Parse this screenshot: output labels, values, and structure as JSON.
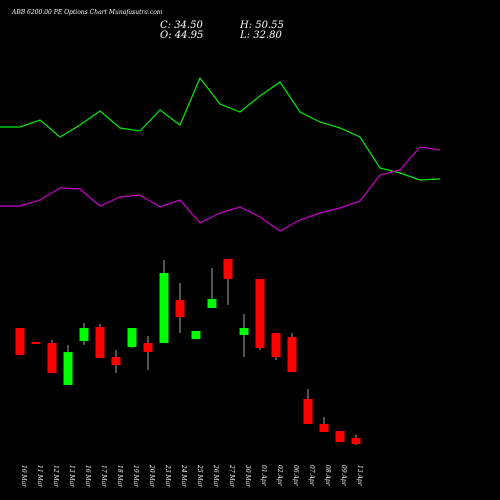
{
  "chart_data": [
    {
      "type": "line",
      "ylim": [
        0,
        250
      ],
      "series": [
        {
          "name": "upper",
          "color": "#00ee00",
          "values": [
            123,
            123,
            130,
            113,
            125,
            139,
            122,
            119,
            140,
            125,
            172,
            146,
            138,
            154,
            168,
            138,
            128,
            122,
            113,
            82,
            77,
            70,
            71
          ]
        },
        {
          "name": "lower",
          "color": "#cc00cc",
          "values": [
            44,
            44,
            50,
            62,
            61,
            44,
            53,
            55,
            43,
            50,
            27,
            37,
            43,
            33,
            19,
            30,
            37,
            42,
            49,
            75,
            80,
            103,
            100
          ]
        }
      ]
    },
    {
      "type": "candlestick",
      "title": "ABB 6200.00  PE Options  Chart Munafasutra.com",
      "info": [
        "C: 34.50",
        "O: 44.95",
        "H: 50.55",
        "L: 32.80"
      ],
      "up_color": "#00ff00",
      "down_color": "#ff0000",
      "ylim": [
        24.2,
        368.2
      ],
      "categories": [
        "10 Mar",
        "11 Mar",
        "12 Mar",
        "13 Mar",
        "16 Mar",
        "17 Mar",
        "18 Mar",
        "19 Mar",
        "20 Mar",
        "23 Mar",
        "24 Mar",
        "25 Mar",
        "26 Mar",
        "27 Mar",
        "30 Mar",
        "01 Apr",
        "02 Apr",
        "06 Apr",
        "07 Apr",
        "08 Apr",
        "09 Apr",
        "13 Apr"
      ],
      "open": [
        234.0,
        209.9,
        208.2,
        136.0,
        211.7,
        235.7,
        184.1,
        201.3,
        208.2,
        208.2,
        282.2,
        215.1,
        268.4,
        352.7,
        222.0,
        318.3,
        225.4,
        218.5,
        111.9,
        68.9,
        56.9,
        44.95
      ],
      "high": [
        234.0,
        209.9,
        213.4,
        204.8,
        242.6,
        240.9,
        196.2,
        234.0,
        220.3,
        351.0,
        311.4,
        228.9,
        337.2,
        352.7,
        258.1,
        318.3,
        225.4,
        225.4,
        129.1,
        80.9,
        56.9,
        50.55
      ],
      "low": [
        187.6,
        206.5,
        156.6,
        136.0,
        204.8,
        182.4,
        156.6,
        199.6,
        161.8,
        208.2,
        225.4,
        215.1,
        268.4,
        273.6,
        184.1,
        196.2,
        179.0,
        158.3,
        68.9,
        55.1,
        37.9,
        32.8
      ],
      "close": [
        187.6,
        206.5,
        156.6,
        192.7,
        234.0,
        182.4,
        170.4,
        234.0,
        192.7,
        328.6,
        252.9,
        228.9,
        283.9,
        318.3,
        234.0,
        199.6,
        184.1,
        158.3,
        68.9,
        55.1,
        37.9,
        34.5
      ]
    }
  ]
}
